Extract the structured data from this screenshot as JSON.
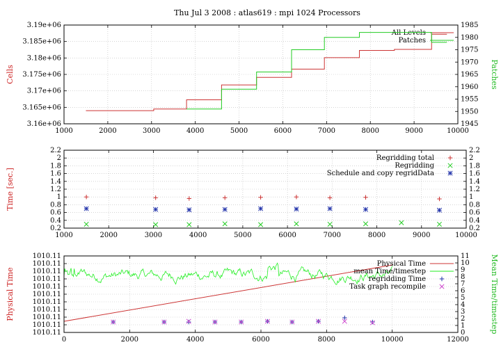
{
  "title": "Thu Jul 3 2008 : atlas619 : mpi 1024 Processors",
  "chart_data": [
    {
      "type": "line",
      "ylabel": "Cells",
      "y2label": "Patches",
      "xlim": [
        1000,
        10000
      ],
      "ylim": [
        3160000,
        3190000
      ],
      "y2lim": [
        1945,
        1985
      ],
      "xticks": [
        "1000",
        "2000",
        "3000",
        "4000",
        "5000",
        "6000",
        "7000",
        "8000",
        "9000",
        "10000"
      ],
      "yticks": [
        "3.16e+06",
        "3.165e+06",
        "3.17e+06",
        "3.175e+06",
        "3.18e+06",
        "3.185e+06",
        "3.19e+06"
      ],
      "y2ticks": [
        "1945",
        "1950",
        "1955",
        "1960",
        "1965",
        "1970",
        "1975",
        "1980",
        "1985"
      ],
      "grid": true,
      "legend_position": "top-right",
      "series": [
        {
          "name": "All Levels",
          "color": "#cc3333",
          "axis": "left",
          "x": [
            1500,
            3050,
            3800,
            4600,
            5400,
            6200,
            6950,
            7750,
            8550,
            9400,
            9750
          ],
          "y": [
            3164000,
            3164500,
            3167300,
            3171800,
            3174100,
            3176600,
            3180100,
            3182300,
            3182600,
            3187200,
            3187200
          ]
        },
        {
          "name": "Patches",
          "color": "#22cc22",
          "axis": "right",
          "x": [
            3800,
            4600,
            5400,
            6200,
            6950,
            7750,
            8550,
            9400,
            9750
          ],
          "y": [
            1951,
            1959,
            1966,
            1975,
            1980,
            1982,
            1982,
            1978,
            1978
          ]
        }
      ]
    },
    {
      "type": "scatter",
      "ylabel": "Time [sec.]",
      "xlim": [
        1000,
        10000
      ],
      "ylim": [
        0.2,
        2.2
      ],
      "xticks": [
        "1000",
        "2000",
        "3000",
        "4000",
        "5000",
        "6000",
        "7000",
        "8000",
        "9000",
        "10000"
      ],
      "yticks": [
        "0.2",
        "0.4",
        "0.6",
        "0.8",
        "1",
        "1.2",
        "1.4",
        "1.6",
        "1.8",
        "2",
        "2.2"
      ],
      "y2ticks": [
        "0.2",
        "0.4",
        "0.6",
        "0.8",
        "1",
        "1.2",
        "1.4",
        "1.6",
        "1.8",
        "2",
        "2.2"
      ],
      "grid": true,
      "legend_position": "top-right",
      "series": [
        {
          "name": "Regridding total",
          "color": "#cc3333",
          "marker": "plus",
          "x": [
            1500,
            3050,
            3800,
            4600,
            5400,
            6200,
            6950,
            7750,
            9400
          ],
          "y": [
            1.0,
            0.98,
            0.96,
            0.98,
            0.99,
            1.0,
            0.98,
            0.99,
            0.95
          ]
        },
        {
          "name": "Regridding",
          "color": "#22cc22",
          "marker": "cross",
          "x": [
            1500,
            3050,
            3800,
            4600,
            5400,
            6200,
            6950,
            7750,
            8550,
            9400
          ],
          "y": [
            0.3,
            0.29,
            0.29,
            0.31,
            0.29,
            0.31,
            0.3,
            0.31,
            0.34,
            0.3
          ]
        },
        {
          "name": "Schedule and copy regridData",
          "color": "#2233aa",
          "marker": "star",
          "x": [
            1500,
            3050,
            3800,
            4600,
            5400,
            6200,
            6950,
            7750,
            9400
          ],
          "y": [
            0.7,
            0.68,
            0.67,
            0.68,
            0.7,
            0.69,
            0.7,
            0.68,
            0.66
          ]
        }
      ]
    },
    {
      "type": "line",
      "ylabel": "Physical Time",
      "y2label": "Mean Time/timestep",
      "xlim": [
        0,
        12000
      ],
      "y2lim": [
        0,
        11
      ],
      "xticks": [
        "0",
        "2000",
        "4000",
        "6000",
        "8000",
        "10000",
        "12000"
      ],
      "yticks": [
        "1010.11",
        "1010.11",
        "1010.11",
        "1010.11",
        "1010.11",
        "1010.11",
        "1010.11",
        "1010.11",
        "1010.11",
        "1010.11",
        "1010.11"
      ],
      "y2ticks": [
        "0",
        "1",
        "2",
        "3",
        "4",
        "5",
        "6",
        "7",
        "8",
        "9",
        "10",
        "11"
      ],
      "grid": true,
      "legend_position": "top-right",
      "series": [
        {
          "name": "Physical Time",
          "color": "#cc3333",
          "axis": "left",
          "x": [
            0,
            10000
          ],
          "y": [
            1.6,
            9.7
          ]
        },
        {
          "name": "mean Time/timestep",
          "color": "#22ee22",
          "axis": "right",
          "x_range": [
            0,
            10000
          ],
          "y_mean": 8.2
        },
        {
          "name": "regridding Time",
          "color": "#2233aa",
          "marker": "plus",
          "axis": "right",
          "x": [
            1500,
            3050,
            3800,
            4600,
            5400,
            6200,
            6950,
            7750,
            8550,
            9400
          ],
          "y": [
            1.5,
            1.5,
            1.5,
            1.5,
            1.5,
            1.6,
            1.5,
            1.6,
            2.1,
            1.5
          ]
        },
        {
          "name": "Task graph recompile",
          "color": "#cc44cc",
          "marker": "cross",
          "axis": "right",
          "x": [
            1500,
            3050,
            3800,
            4600,
            5400,
            6200,
            6950,
            7750,
            8550,
            9400
          ],
          "y": [
            1.5,
            1.5,
            1.6,
            1.5,
            1.5,
            1.6,
            1.5,
            1.6,
            1.6,
            1.4
          ]
        }
      ]
    }
  ]
}
